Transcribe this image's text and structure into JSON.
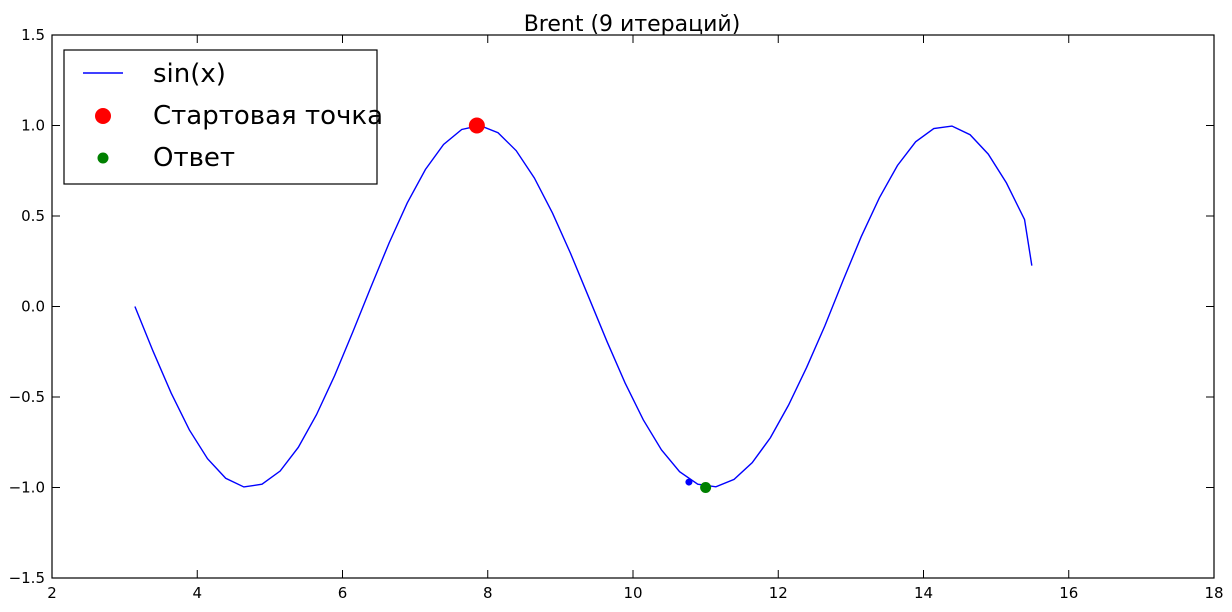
{
  "chart_data": {
    "type": "line",
    "title": "Brent (9 итераций)",
    "xlabel": "",
    "ylabel": "",
    "xlim": [
      2,
      18
    ],
    "ylim": [
      -1.5,
      1.5
    ],
    "xticks": [
      2,
      4,
      6,
      8,
      10,
      12,
      14,
      16,
      18
    ],
    "yticks": [
      -1.5,
      -1.0,
      -0.5,
      0.0,
      0.5,
      1.0,
      1.5
    ],
    "xtick_labels": [
      "2",
      "4",
      "6",
      "8",
      "10",
      "12",
      "14",
      "16",
      "18"
    ],
    "ytick_labels": [
      "−1.5",
      "−1.0",
      "−0.5",
      "0.0",
      "0.5",
      "1.0",
      "1.5"
    ],
    "grid": false,
    "legend_position": "top-left",
    "series": [
      {
        "name": "sin(x)",
        "kind": "line",
        "color": "#0000ff",
        "x": [
          3.1416,
          3.3916,
          3.6416,
          3.8916,
          4.1416,
          4.3916,
          4.6416,
          4.8916,
          5.1416,
          5.3916,
          5.6416,
          5.8916,
          6.1416,
          6.3916,
          6.6416,
          6.8916,
          7.1416,
          7.3916,
          7.6416,
          7.8916,
          8.1416,
          8.3916,
          8.6416,
          8.8916,
          9.1416,
          9.3916,
          9.6416,
          9.8916,
          10.1416,
          10.3916,
          10.6416,
          10.8916,
          11.1416,
          11.3916,
          11.6416,
          11.8916,
          12.1416,
          12.3916,
          12.6416,
          12.8916,
          13.1416,
          13.3916,
          13.6416,
          13.8916,
          14.1416,
          14.3916,
          14.6416,
          14.8916,
          15.1416,
          15.3916,
          15.4916
        ],
        "y": [
          0.0,
          -0.247,
          -0.479,
          -0.682,
          -0.841,
          -0.949,
          -0.997,
          -0.982,
          -0.909,
          -0.778,
          -0.598,
          -0.382,
          -0.141,
          0.108,
          0.351,
          0.572,
          0.757,
          0.895,
          0.978,
          1.0,
          0.96,
          0.861,
          0.71,
          0.516,
          0.292,
          0.05,
          -0.193,
          -0.423,
          -0.626,
          -0.792,
          -0.913,
          -0.982,
          -0.996,
          -0.955,
          -0.863,
          -0.725,
          -0.545,
          -0.336,
          -0.107,
          0.143,
          0.385,
          0.6,
          0.779,
          0.91,
          0.983,
          0.997,
          0.949,
          0.842,
          0.683,
          0.48,
          0.226
        ]
      },
      {
        "name": "Стартовая точка",
        "kind": "marker",
        "color": "#ff0000",
        "size": "large",
        "x": [
          7.85
        ],
        "y": [
          1.0
        ]
      },
      {
        "name": "Ответ",
        "kind": "marker",
        "color": "#008000",
        "size": "medium",
        "x": [
          11.0
        ],
        "y": [
          -1.0
        ]
      },
      {
        "kind": "marker",
        "color": "#0000ff",
        "size": "small",
        "x": [
          10.77
        ],
        "y": [
          -0.97
        ]
      }
    ]
  }
}
